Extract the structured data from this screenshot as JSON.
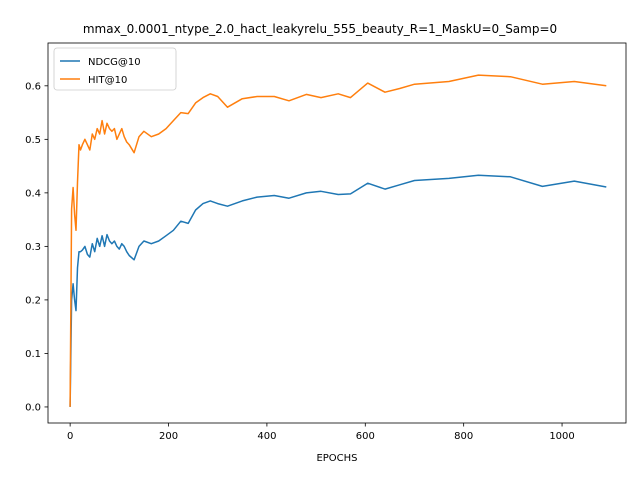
{
  "chart_data": {
    "type": "line",
    "title": "mmax_0.0001_ntype_2.0_hact_leakyrelu_555_beauty_R=1_MaskU=0_Samp=0",
    "xlabel": "EPOCHS",
    "ylabel": "",
    "xlim": [
      -45,
      1130
    ],
    "ylim": [
      -0.03,
      0.68
    ],
    "xticks": [
      0,
      200,
      400,
      600,
      800,
      1000
    ],
    "yticks": [
      0.0,
      0.1,
      0.2,
      0.3,
      0.4,
      0.5,
      0.6
    ],
    "ytick_labels": [
      "0.0",
      "0.1",
      "0.2",
      "0.3",
      "0.4",
      "0.5",
      "0.6"
    ],
    "grid": false,
    "legend_position": "top-left",
    "series": [
      {
        "name": "NDCG@10",
        "color": "#1f77b4",
        "x": [
          0,
          3,
          6,
          9,
          12,
          15,
          18,
          21,
          25,
          30,
          35,
          40,
          45,
          50,
          55,
          60,
          65,
          70,
          75,
          80,
          85,
          90,
          95,
          100,
          105,
          110,
          115,
          120,
          130,
          140,
          150,
          165,
          180,
          195,
          210,
          225,
          240,
          255,
          270,
          285,
          300,
          320,
          350,
          380,
          415,
          445,
          480,
          510,
          545,
          570,
          605,
          640,
          670,
          700,
          770,
          830,
          895,
          960,
          1025,
          1090
        ],
        "y": [
          0.0,
          0.2,
          0.23,
          0.2,
          0.18,
          0.26,
          0.29,
          0.29,
          0.293,
          0.3,
          0.285,
          0.28,
          0.305,
          0.29,
          0.315,
          0.3,
          0.32,
          0.3,
          0.322,
          0.31,
          0.305,
          0.31,
          0.3,
          0.295,
          0.305,
          0.3,
          0.29,
          0.283,
          0.275,
          0.3,
          0.31,
          0.305,
          0.31,
          0.32,
          0.33,
          0.347,
          0.343,
          0.368,
          0.38,
          0.385,
          0.38,
          0.375,
          0.385,
          0.392,
          0.395,
          0.39,
          0.4,
          0.403,
          0.397,
          0.398,
          0.418,
          0.407,
          0.415,
          0.423,
          0.427,
          0.433,
          0.43,
          0.412,
          0.422,
          0.411
        ]
      },
      {
        "name": "HIT@10",
        "color": "#ff7f0e",
        "x": [
          0,
          3,
          6,
          9,
          12,
          15,
          18,
          21,
          25,
          30,
          35,
          40,
          45,
          50,
          55,
          60,
          65,
          70,
          75,
          80,
          85,
          90,
          95,
          100,
          105,
          110,
          115,
          120,
          130,
          140,
          150,
          165,
          180,
          195,
          210,
          225,
          240,
          255,
          270,
          285,
          300,
          320,
          350,
          380,
          415,
          445,
          480,
          510,
          545,
          570,
          605,
          640,
          670,
          700,
          770,
          830,
          895,
          960,
          1025,
          1090
        ],
        "y": [
          0.0,
          0.37,
          0.41,
          0.36,
          0.33,
          0.42,
          0.49,
          0.48,
          0.49,
          0.5,
          0.49,
          0.48,
          0.51,
          0.5,
          0.52,
          0.51,
          0.535,
          0.51,
          0.53,
          0.52,
          0.515,
          0.52,
          0.5,
          0.51,
          0.52,
          0.505,
          0.495,
          0.49,
          0.475,
          0.505,
          0.515,
          0.505,
          0.51,
          0.52,
          0.535,
          0.55,
          0.548,
          0.568,
          0.578,
          0.585,
          0.58,
          0.56,
          0.576,
          0.58,
          0.58,
          0.572,
          0.584,
          0.578,
          0.585,
          0.578,
          0.605,
          0.588,
          0.595,
          0.603,
          0.608,
          0.62,
          0.617,
          0.603,
          0.608,
          0.6
        ]
      }
    ]
  }
}
